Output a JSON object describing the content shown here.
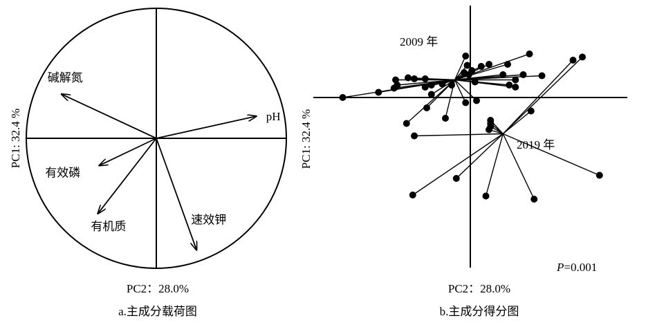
{
  "chart_data": [
    {
      "type": "biplot",
      "caption": "a.主成分载荷图",
      "xlabel": "PC2：28.0%",
      "ylabel": "PC1: 32.4 %",
      "xlim": [
        -1,
        1
      ],
      "ylim": [
        -1,
        1
      ],
      "circle": true,
      "vectors": [
        {
          "name": "碱解氮",
          "x": -0.73,
          "y": 0.34
        },
        {
          "name": "pH",
          "x": 0.77,
          "y": 0.17
        },
        {
          "name": "有效磷",
          "x": -0.44,
          "y": -0.21
        },
        {
          "name": "有机质",
          "x": -0.45,
          "y": -0.58
        },
        {
          "name": "速效钾",
          "x": 0.31,
          "y": -0.86
        }
      ]
    },
    {
      "type": "scatter",
      "caption": "b.主成分得分图",
      "xlabel": "PC2：28.0%",
      "ylabel": "PC1: 32.4 %",
      "annotation": "P=0.001",
      "xlim": [
        -1,
        1
      ],
      "ylim": [
        -1,
        1
      ],
      "groups": [
        {
          "name": "2009 年",
          "centroid": [
            -0.1,
            0.17
          ],
          "points": [
            [
              -0.82,
              0.0
            ],
            [
              -0.59,
              0.05
            ],
            [
              -0.49,
              0.09
            ],
            [
              -0.47,
              0.12
            ],
            [
              -0.48,
              0.17
            ],
            [
              -0.4,
              0.19
            ],
            [
              -0.36,
              0.18
            ],
            [
              -0.29,
              0.18
            ],
            [
              -0.25,
              0.12
            ],
            [
              -0.29,
              0.1
            ],
            [
              -0.18,
              0.13
            ],
            [
              -0.12,
              0.12
            ],
            [
              -0.25,
              0.03
            ],
            [
              -0.28,
              -0.1
            ],
            [
              -0.41,
              -0.25
            ],
            [
              -0.16,
              -0.2
            ],
            [
              -0.03,
              0.4
            ],
            [
              -0.02,
              0.31
            ],
            [
              -0.04,
              0.24
            ],
            [
              -0.01,
              0.22
            ],
            [
              0.01,
              0.26
            ],
            [
              0.07,
              0.3
            ],
            [
              0.12,
              0.32
            ],
            [
              0.24,
              0.32
            ],
            [
              0.38,
              0.42
            ],
            [
              0.21,
              0.22
            ],
            [
              0.34,
              0.22
            ],
            [
              0.46,
              0.21
            ],
            [
              0.29,
              0.17
            ],
            [
              0.25,
              0.12
            ],
            [
              0.29,
              0.1
            ],
            [
              0.03,
              0.15
            ],
            [
              -0.03,
              -0.05
            ],
            [
              0.04,
              -0.03
            ]
          ]
        },
        {
          "name": "2019 年",
          "centroid": [
            0.21,
            -0.35
          ],
          "points": [
            [
              0.66,
              0.36
            ],
            [
              0.72,
              0.39
            ],
            [
              0.39,
              -0.13
            ],
            [
              0.13,
              -0.22
            ],
            [
              0.13,
              -0.25
            ],
            [
              0.13,
              -0.28
            ],
            [
              0.12,
              -0.31
            ],
            [
              -0.36,
              -0.37
            ],
            [
              0.83,
              -0.75
            ],
            [
              -0.09,
              -0.78
            ],
            [
              -0.37,
              -0.94
            ],
            [
              0.1,
              -0.95
            ],
            [
              0.41,
              -0.98
            ]
          ]
        }
      ]
    }
  ]
}
